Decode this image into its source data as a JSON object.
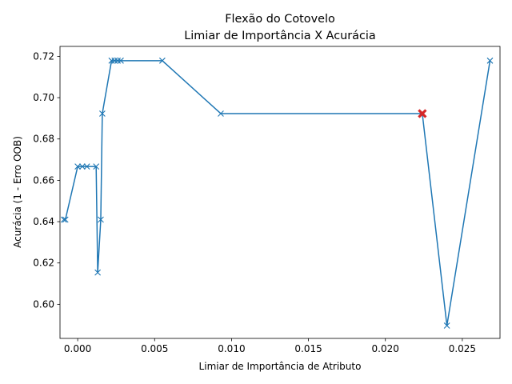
{
  "chart_data": {
    "type": "line",
    "title": "Flexão do Cotovelo",
    "subtitle": "Limiar de Importância X Acurácia",
    "xlabel": "Limiar de Atributo",
    "xlabel_full": "Limiar de Importância de Atributo",
    "ylabel": "Acurácia (1 - Erro OOB)",
    "xlim": [
      -0.00115,
      0.02745
    ],
    "ylim": [
      0.5835,
      0.7248
    ],
    "xticks": [
      0.0,
      0.005,
      0.01,
      0.015,
      0.02,
      0.025
    ],
    "xtick_labels": [
      "0.000",
      "0.005",
      "0.010",
      "0.015",
      "0.020",
      "0.025"
    ],
    "yticks": [
      0.6,
      0.62,
      0.64,
      0.66,
      0.68,
      0.7,
      0.72
    ],
    "ytick_labels": [
      "0.60",
      "0.62",
      "0.64",
      "0.66",
      "0.68",
      "0.70",
      "0.72"
    ],
    "grid": false,
    "series": [
      {
        "color": "#1f77b4",
        "marker": "x",
        "x": [
          -0.0009,
          -0.0008,
          0.0,
          0.0003,
          0.0006,
          0.0012,
          0.0013,
          0.0015,
          0.0016,
          0.0022,
          0.0024,
          0.0026,
          0.0028,
          0.0055,
          0.0093,
          0.0224,
          0.024,
          0.0268
        ],
        "y": [
          0.641,
          0.641,
          0.6667,
          0.6667,
          0.6667,
          0.6667,
          0.6154,
          0.641,
          0.6923,
          0.7179,
          0.7179,
          0.7179,
          0.7179,
          0.7179,
          0.6923,
          0.6923,
          0.5897,
          0.7179
        ]
      }
    ],
    "highlight": {
      "x": 0.0224,
      "y": 0.6923,
      "color": "#d62728",
      "marker": "X"
    }
  }
}
